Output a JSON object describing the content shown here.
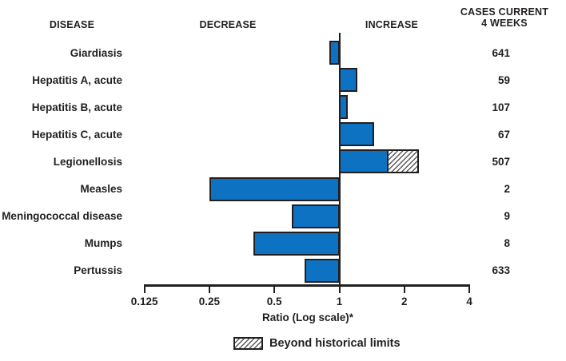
{
  "header": {
    "disease": "DISEASE",
    "decrease": "DECREASE",
    "increase": "INCREASE",
    "cases_line1": "CASES CURRENT",
    "cases_line2": "4 WEEKS"
  },
  "chart_data": {
    "type": "bar",
    "orientation": "horizontal",
    "scale": "log2",
    "title": "",
    "xlabel": "Ratio (Log scale)*",
    "axis": {
      "label": "Ratio (Log scale)*",
      "ticks": [
        0.125,
        0.25,
        0.5,
        1,
        2,
        4
      ],
      "tick_labels": [
        "0.125",
        "0.25",
        "0.5",
        "1",
        "2",
        "4"
      ],
      "range": [
        0.125,
        4
      ],
      "baseline": 1
    },
    "legend": {
      "label": "Beyond historical limits",
      "style": "hatched",
      "position": "bottom"
    },
    "columns": {
      "disease": "DISEASE",
      "cases": "CASES CURRENT 4 WEEKS"
    },
    "rows": [
      {
        "disease": "Giardiasis",
        "ratio": 0.9,
        "beyond": null,
        "cases": "641"
      },
      {
        "disease": "Hepatitis A, acute",
        "ratio": 1.21,
        "beyond": null,
        "cases": "59"
      },
      {
        "disease": "Hepatitis B, acute",
        "ratio": 1.09,
        "beyond": null,
        "cases": "107"
      },
      {
        "disease": "Hepatitis C, acute",
        "ratio": 1.45,
        "beyond": null,
        "cases": "67"
      },
      {
        "disease": "Legionellosis",
        "ratio": 1.69,
        "beyond": 2.33,
        "cases": "507"
      },
      {
        "disease": "Measles",
        "ratio": 0.25,
        "beyond": null,
        "cases": "2"
      },
      {
        "disease": "Meningococcal disease",
        "ratio": 0.6,
        "beyond": null,
        "cases": "9"
      },
      {
        "disease": "Mumps",
        "ratio": 0.4,
        "beyond": null,
        "cases": "8"
      },
      {
        "disease": "Pertussis",
        "ratio": 0.69,
        "beyond": null,
        "cases": "633"
      }
    ],
    "colors": {
      "bar_fill": "#0e72c2",
      "bar_border": "#231f20",
      "text": "#231f20",
      "hatch_line": "#59595b"
    }
  }
}
